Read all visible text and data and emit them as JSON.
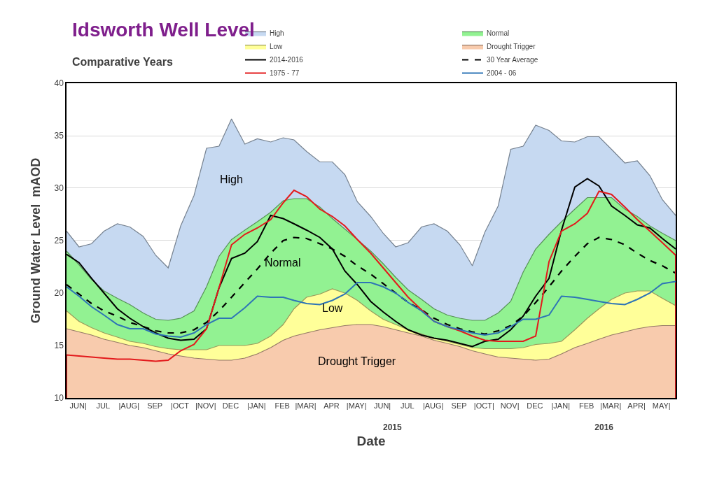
{
  "chart_data": {
    "type": "area",
    "title": "Idsworth Well Level",
    "subtitle": "Comparative Years",
    "xlabel": "Date",
    "ylabel": "Ground Water Level  mAOD",
    "x": [
      "2014-06-01",
      "2014-06-16",
      "2014-07-01",
      "2014-07-16",
      "2014-08-01",
      "2014-08-16",
      "2014-09-01",
      "2014-09-16",
      "2014-10-01",
      "2014-10-16",
      "2014-11-01",
      "2014-11-16",
      "2014-12-01",
      "2014-12-16",
      "2015-01-01",
      "2015-01-16",
      "2015-02-01",
      "2015-02-16",
      "2015-03-01",
      "2015-03-16",
      "2015-04-01",
      "2015-04-16",
      "2015-05-01",
      "2015-05-16",
      "2015-06-01",
      "2015-06-16",
      "2015-07-01",
      "2015-07-16",
      "2015-08-01",
      "2015-08-16",
      "2015-09-01",
      "2015-09-16",
      "2015-10-01",
      "2015-10-16",
      "2015-11-01",
      "2015-11-16",
      "2015-12-01",
      "2015-12-16",
      "2016-01-01",
      "2016-01-16",
      "2016-02-01",
      "2016-02-16",
      "2016-03-01",
      "2016-03-16",
      "2016-04-01",
      "2016-04-16",
      "2016-05-01",
      "2016-05-16",
      "2016-06-01"
    ],
    "series": [
      {
        "name": "High",
        "type": "area",
        "color": "#c6d9f1",
        "values": [
          25.9,
          24.4,
          24.7,
          25.9,
          26.6,
          26.3,
          25.4,
          23.6,
          22.4,
          26.4,
          29.3,
          33.8,
          34.0,
          36.6,
          34.2,
          34.7,
          34.4,
          34.8,
          34.6,
          33.5,
          32.5,
          32.5,
          31.3,
          28.7,
          27.3,
          25.7,
          24.4,
          24.8,
          26.3,
          26.6,
          25.9,
          24.6,
          22.6,
          25.8,
          28.3,
          33.7,
          34.0,
          36.0,
          35.5,
          34.5,
          34.4,
          34.9,
          34.9,
          33.7,
          32.4,
          32.6,
          31.2,
          28.9,
          27.4
        ]
      },
      {
        "name": "Normal",
        "type": "area",
        "color": "#92f292",
        "values": [
          24.0,
          22.7,
          21.3,
          20.2,
          19.5,
          18.9,
          18.1,
          17.5,
          17.4,
          17.6,
          18.3,
          20.6,
          23.5,
          25.1,
          26.0,
          26.8,
          27.7,
          28.8,
          29.0,
          29.0,
          28.2,
          27.1,
          26.1,
          25.1,
          24.0,
          22.8,
          21.5,
          20.3,
          19.4,
          18.5,
          17.9,
          17.6,
          17.4,
          17.4,
          18.1,
          19.2,
          22.0,
          24.2,
          25.6,
          26.8,
          28.0,
          29.1,
          29.1,
          29.1,
          28.0,
          27.3,
          26.4,
          25.7,
          25.0
        ]
      },
      {
        "name": "Low",
        "type": "area",
        "color": "#ffff99",
        "values": [
          18.3,
          17.3,
          16.7,
          16.2,
          15.8,
          15.4,
          15.2,
          14.9,
          14.7,
          14.6,
          14.6,
          14.6,
          15.0,
          15.0,
          15.0,
          15.2,
          15.9,
          17.0,
          18.5,
          19.6,
          19.9,
          20.4,
          20.0,
          19.3,
          18.3,
          17.5,
          17.0,
          16.5,
          16.1,
          15.7,
          15.4,
          15.1,
          14.8,
          14.7,
          14.7,
          14.7,
          14.8,
          15.1,
          15.2,
          15.4,
          16.5,
          17.6,
          18.5,
          19.4,
          20.0,
          20.2,
          20.2,
          19.5,
          18.8
        ]
      },
      {
        "name": "Drought Trigger",
        "type": "area",
        "color": "#f8cbad",
        "values": [
          16.6,
          16.3,
          16.0,
          15.6,
          15.3,
          15.0,
          14.8,
          14.5,
          14.2,
          14.0,
          13.8,
          13.7,
          13.6,
          13.6,
          13.8,
          14.2,
          14.8,
          15.5,
          15.9,
          16.2,
          16.5,
          16.7,
          16.9,
          17.0,
          17.0,
          16.8,
          16.5,
          16.2,
          15.9,
          15.5,
          15.2,
          14.9,
          14.5,
          14.2,
          13.9,
          13.8,
          13.7,
          13.6,
          13.7,
          14.2,
          14.8,
          15.2,
          15.6,
          16.0,
          16.3,
          16.6,
          16.8,
          16.9,
          16.9
        ]
      },
      {
        "name": "2014-2016",
        "type": "line",
        "color": "#000000",
        "line_style": "solid",
        "values": [
          23.7,
          22.9,
          21.4,
          20.0,
          18.5,
          17.6,
          16.8,
          16.2,
          15.7,
          15.5,
          15.6,
          16.6,
          20.5,
          23.3,
          23.8,
          24.9,
          27.4,
          27.1,
          26.6,
          26.0,
          25.3,
          24.2,
          22.1,
          20.8,
          19.2,
          18.2,
          17.3,
          16.5,
          16.0,
          15.7,
          15.5,
          15.2,
          14.9,
          15.4,
          15.6,
          16.5,
          17.8,
          19.7,
          21.4,
          26.0,
          30.1,
          30.9,
          30.2,
          28.3,
          27.4,
          26.5,
          26.2,
          25.2,
          24.2
        ]
      },
      {
        "name": "30 Year Average",
        "type": "line",
        "color": "#000000",
        "line_style": "dashed",
        "values": [
          20.8,
          19.9,
          19.0,
          18.3,
          17.8,
          17.2,
          16.8,
          16.4,
          16.2,
          16.2,
          16.5,
          17.2,
          18.3,
          19.6,
          21.0,
          22.3,
          23.8,
          25.0,
          25.3,
          25.2,
          24.7,
          24.2,
          23.5,
          22.6,
          21.8,
          20.9,
          20.0,
          19.1,
          18.4,
          17.6,
          17.0,
          16.6,
          16.3,
          16.1,
          16.4,
          16.9,
          17.8,
          19.1,
          20.6,
          22.1,
          23.5,
          24.7,
          25.3,
          25.1,
          24.6,
          23.8,
          23.1,
          22.6,
          21.9
        ]
      },
      {
        "name": "1975 - 77",
        "type": "line",
        "color": "#e31a1c",
        "line_style": "solid",
        "x": [
          "2014-06-01",
          "2014-06-01",
          "2014-06-16",
          "2014-07-01",
          "2014-07-16",
          "2014-08-01",
          "2014-08-16",
          "2014-09-01",
          "2014-09-16",
          "2014-10-01",
          "2014-10-16",
          "2014-11-01",
          "2014-11-16",
          "2014-12-01",
          "2014-12-16",
          "2015-01-01",
          "2015-01-16",
          "2015-02-01",
          "2015-02-16",
          "2015-03-01",
          "2015-03-16",
          "2015-04-01",
          "2015-04-16",
          "2015-05-01",
          "2015-05-16",
          "2015-06-01",
          "2015-06-16",
          "2015-07-01",
          "2015-07-16",
          "2015-08-01",
          "2015-08-16",
          "2015-09-01",
          "2015-09-16",
          "2015-10-01",
          "2015-10-16",
          "2015-11-01",
          "2015-11-16",
          "2015-12-01",
          "2015-12-16",
          "2016-01-01",
          "2016-01-16",
          "2016-02-01",
          "2016-02-16",
          "2016-03-01",
          "2016-03-16",
          "2016-04-01",
          "2016-04-16",
          "2016-05-01",
          "2016-05-16",
          "2016-06-01",
          "2016-06-01"
        ],
        "values": [
          10,
          14.1,
          14.0,
          13.9,
          13.8,
          13.7,
          13.7,
          13.6,
          13.5,
          13.6,
          14.5,
          15.1,
          16.6,
          20.5,
          24.6,
          25.6,
          26.2,
          27.0,
          28.6,
          29.8,
          29.2,
          28.0,
          27.3,
          26.4,
          25.1,
          23.8,
          22.4,
          21.0,
          19.6,
          18.4,
          17.3,
          16.8,
          16.4,
          15.9,
          15.5,
          15.4,
          15.4,
          15.4,
          15.9,
          23.0,
          25.9,
          26.6,
          27.6,
          29.7,
          29.4,
          28.2,
          27.0,
          25.9,
          24.8,
          23.6,
          10
        ]
      },
      {
        "name": "2004 - 06",
        "type": "line",
        "color": "#2e75b6",
        "line_style": "solid",
        "values": [
          20.6,
          19.7,
          18.7,
          17.9,
          17.0,
          16.6,
          16.6,
          16.1,
          15.9,
          15.8,
          16.2,
          17.0,
          17.6,
          17.6,
          18.6,
          19.7,
          19.6,
          19.6,
          19.3,
          19.0,
          18.9,
          19.3,
          19.9,
          21.0,
          21.0,
          20.6,
          20.0,
          19.1,
          18.3,
          17.3,
          16.8,
          16.5,
          16.2,
          16.0,
          16.2,
          16.8,
          17.5,
          17.5,
          17.9,
          19.7,
          19.6,
          19.4,
          19.2,
          19.0,
          18.9,
          19.4,
          20.0,
          20.9,
          21.1
        ]
      }
    ],
    "xlim": [
      "2014-06-01",
      "2016-06-01"
    ],
    "xticks": [
      {
        "value": "2014-06-15",
        "label": "JUN|"
      },
      {
        "value": "2014-07-15",
        "label": "JUL"
      },
      {
        "value": "2014-08-15",
        "label": "|AUG|"
      },
      {
        "value": "2014-09-15",
        "label": "SEP"
      },
      {
        "value": "2014-10-15",
        "label": "|OCT"
      },
      {
        "value": "2014-11-15",
        "label": "|NOV|"
      },
      {
        "value": "2014-12-15",
        "label": "DEC"
      },
      {
        "value": "2015-01-15",
        "label": "|JAN|"
      },
      {
        "value": "2015-02-15",
        "label": "FEB"
      },
      {
        "value": "2015-03-15",
        "label": "|MAR|"
      },
      {
        "value": "2015-04-15",
        "label": "APR"
      },
      {
        "value": "2015-05-15",
        "label": "|MAY|"
      },
      {
        "value": "2015-06-15",
        "label": "JUN|"
      },
      {
        "value": "2015-07-15",
        "label": "JUL"
      },
      {
        "value": "2015-08-15",
        "label": "|AUG|"
      },
      {
        "value": "2015-09-15",
        "label": "SEP"
      },
      {
        "value": "2015-10-15",
        "label": "|OCT|"
      },
      {
        "value": "2015-11-15",
        "label": "NOV|"
      },
      {
        "value": "2015-12-15",
        "label": "DEC"
      },
      {
        "value": "2016-01-15",
        "label": "|JAN|"
      },
      {
        "value": "2016-02-15",
        "label": "FEB"
      },
      {
        "value": "2016-03-15",
        "label": "|MAR|"
      },
      {
        "value": "2016-04-15",
        "label": "APR|"
      },
      {
        "value": "2016-05-15",
        "label": "MAY|"
      }
    ],
    "x2lim": [
      "2014-06-01",
      "2016-06-01"
    ],
    "x2ticks": [
      {
        "value": "2015-06-27",
        "label": "2015"
      },
      {
        "value": "2016-03-07",
        "label": "2016"
      }
    ],
    "ylim": [
      10,
      40
    ],
    "yticks": [
      10,
      15,
      20,
      25,
      30,
      35,
      40
    ],
    "grid": "y",
    "legend": "top right",
    "annotations": [
      "High",
      "Normal",
      "Low",
      "Drought Trigger"
    ]
  }
}
